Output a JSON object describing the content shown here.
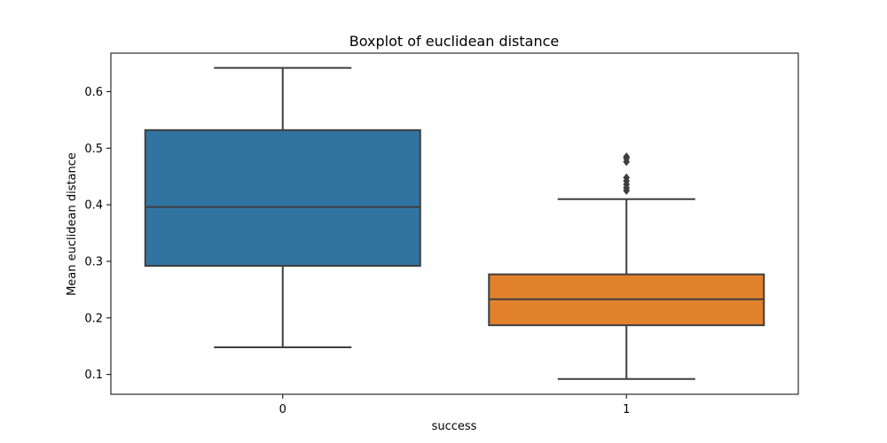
{
  "chart_data": {
    "type": "box",
    "title": "Boxplot of euclidean distance",
    "xlabel": "success",
    "ylabel": "Mean euclidean distance",
    "categories": [
      "0",
      "1"
    ],
    "boxes": [
      {
        "category": "0",
        "whisker_low": 0.148,
        "q1": 0.292,
        "median": 0.396,
        "q3": 0.532,
        "whisker_high": 0.642,
        "color": "#3274a1",
        "outliers": []
      },
      {
        "category": "1",
        "whisker_low": 0.092,
        "q1": 0.187,
        "median": 0.233,
        "q3": 0.277,
        "whisker_high": 0.41,
        "color": "#e1812c",
        "outliers": [
          0.425,
          0.43,
          0.436,
          0.442,
          0.448,
          0.476,
          0.482,
          0.485
        ]
      }
    ],
    "yticks": [
      0.1,
      0.2,
      0.3,
      0.4,
      0.5,
      0.6
    ],
    "ytick_labels": [
      "0.1",
      "0.2",
      "0.3",
      "0.4",
      "0.5",
      "0.6"
    ],
    "ylim": [
      0.065,
      0.668
    ],
    "grid": false,
    "line_color": "#3f3f3f"
  }
}
